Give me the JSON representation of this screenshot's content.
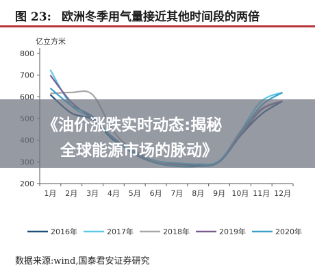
{
  "figure": {
    "label": "图  23:",
    "title": "欧洲冬季用气量接近其他时间段的两倍",
    "source": "数据来源:wind,国泰君安证券研究"
  },
  "overlay": {
    "line1": "《油价涨跌实时动态:揭秘",
    "line2": "全球能源市场的脉动》"
  },
  "chart_data": {
    "type": "line",
    "title": "欧洲冬季用气量接近其他时间段的两倍",
    "ylabel": "亿立方米",
    "xlabel": "",
    "categories": [
      "1月",
      "2月",
      "3月",
      "4月",
      "5月",
      "6月",
      "7月",
      "8月",
      "9月",
      "10月",
      "11月",
      "12月"
    ],
    "ylim": [
      200,
      800
    ],
    "yticks": [
      200,
      300,
      400,
      500,
      600,
      700,
      800
    ],
    "grid": false,
    "legend_position": "bottom",
    "series": [
      {
        "name": "2016年",
        "color": "#1f4e79",
        "values": [
          610,
          525,
          495,
          400,
          350,
          300,
          290,
          285,
          300,
          420,
          520,
          580
        ]
      },
      {
        "name": "2017年",
        "color": "#5bc8e8",
        "values": [
          725,
          560,
          500,
          410,
          345,
          305,
          295,
          290,
          305,
          440,
          580,
          620
        ]
      },
      {
        "name": "2018年",
        "color": "#a6a6a6",
        "values": [
          615,
          620,
          610,
          440,
          350,
          300,
          285,
          280,
          300,
          440,
          545,
          580
        ]
      },
      {
        "name": "2019年",
        "color": "#7a5c8f",
        "values": [
          700,
          575,
          500,
          410,
          335,
          295,
          280,
          280,
          300,
          420,
          540,
          580
        ]
      },
      {
        "name": "2020年",
        "color": "#3aa0c8",
        "values": [
          640,
          560,
          510,
          405,
          340,
          295,
          280,
          280,
          300,
          430,
          560,
          620
        ]
      }
    ]
  }
}
